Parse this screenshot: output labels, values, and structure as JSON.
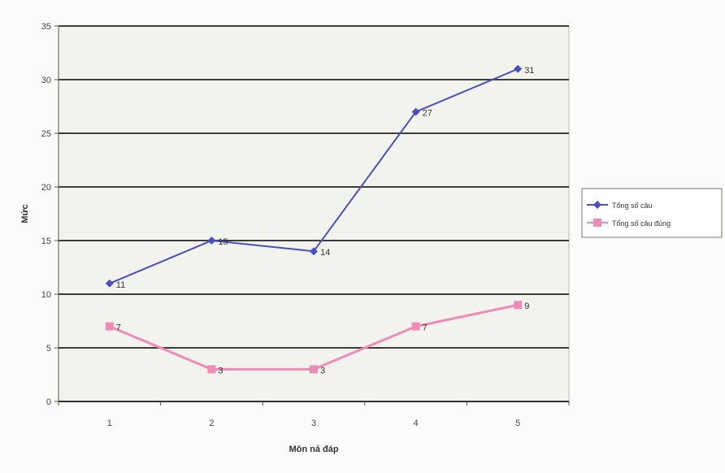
{
  "chart_data": {
    "type": "line",
    "title": "",
    "xlabel": "Môn nả đáp",
    "ylabel": "Mức",
    "x": [
      1,
      2,
      3,
      4,
      5
    ],
    "ylim": [
      0,
      35
    ],
    "yticks": [
      0,
      5,
      10,
      15,
      20,
      25,
      30,
      35
    ],
    "grid": true,
    "legend_position": "right",
    "series": [
      {
        "name": "Tổng số câu",
        "color": "#4b4fc0",
        "marker": "diamond",
        "values": [
          11,
          15,
          14,
          27,
          31
        ],
        "labels": [
          "11",
          "15",
          "14",
          "27",
          "31"
        ]
      },
      {
        "name": "Tổng số câu đúng",
        "color": "#f08ab8",
        "marker": "square",
        "values": [
          7,
          3,
          3,
          7,
          9
        ],
        "labels": [
          "7",
          "3",
          "3",
          "7",
          "9"
        ]
      }
    ]
  }
}
